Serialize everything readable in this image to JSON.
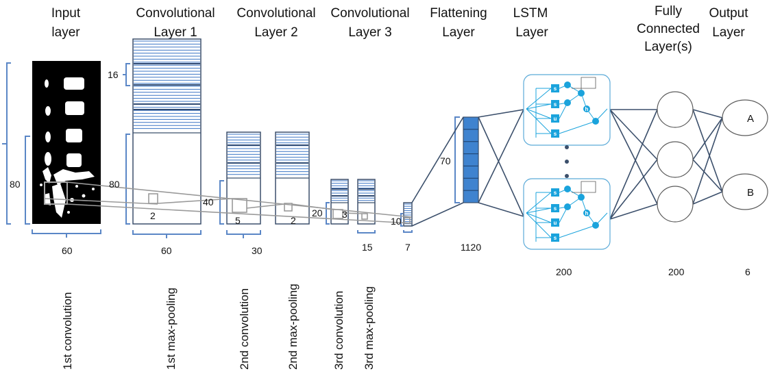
{
  "headers": {
    "input": [
      "Input",
      "layer"
    ],
    "conv1": [
      "Convolutional",
      "Layer 1"
    ],
    "conv2": [
      "Convolutional",
      "Layer 2"
    ],
    "conv3": [
      "Convolutional",
      "Layer 3"
    ],
    "flatten": [
      "Flattening",
      "Layer"
    ],
    "lstm": [
      "LSTM",
      "Layer"
    ],
    "fc": [
      "Fully",
      "Connected",
      "Layer(s)"
    ],
    "output": [
      "Output",
      "Layer"
    ]
  },
  "dims": {
    "in_height": "80",
    "in_width": "60",
    "c1_stripe": "16",
    "c1_height": "80",
    "c1_kernel": "2",
    "c1_width": "60",
    "c2_height": "40",
    "c2_kernel_a": "5",
    "c2_kernel_b": "2",
    "c2_width": "30",
    "c3_height": "20",
    "c3_kernel": "3",
    "c3_width": "15",
    "flat_height": "10",
    "flat_width": "7",
    "fl_height": "70"
  },
  "counts": {
    "flatten": "1120",
    "lstm": "200",
    "fc": "200",
    "output": "6"
  },
  "outputs": [
    "A",
    "B"
  ],
  "lstm_gates": [
    "s",
    "s",
    "u",
    "s"
  ],
  "lstm_tanh": "tanh",
  "operations": [
    "1st convolution",
    "1st max-pooling",
    "2nd convolution",
    "2nd max-pooling",
    "3rd convolution",
    "3rd max-pooling"
  ],
  "colors": {
    "stripe": "#3a74c4",
    "box": "#3b4f6b",
    "bracket": "#5a86c6",
    "lstm": "#1aa3dc",
    "flat_fill": "#3f83cf",
    "kernel": "#9a9a9a"
  }
}
